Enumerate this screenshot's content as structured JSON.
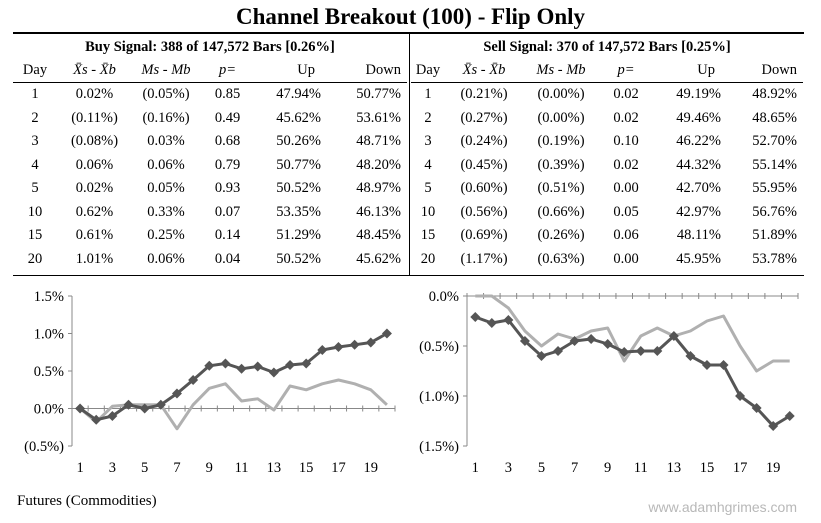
{
  "title": "Channel Breakout (100) - Flip Only",
  "buy": {
    "heading": "Buy Signal: 388 of 147,572 Bars [0.26%]",
    "columns": [
      "Day",
      "X̄s - X̄b",
      "Ms - Mb",
      "p=",
      "Up",
      "Down"
    ],
    "rows": [
      [
        "1",
        "0.02%",
        "(0.05%)",
        "0.85",
        "47.94%",
        "50.77%"
      ],
      [
        "2",
        "(0.11%)",
        "(0.16%)",
        "0.49",
        "45.62%",
        "53.61%"
      ],
      [
        "3",
        "(0.08%)",
        "0.03%",
        "0.68",
        "50.26%",
        "48.71%"
      ],
      [
        "4",
        "0.06%",
        "0.06%",
        "0.79",
        "50.77%",
        "48.20%"
      ],
      [
        "5",
        "0.02%",
        "0.05%",
        "0.93",
        "50.52%",
        "48.97%"
      ],
      [
        "10",
        "0.62%",
        "0.33%",
        "0.07",
        "53.35%",
        "46.13%"
      ],
      [
        "15",
        "0.61%",
        "0.25%",
        "0.14",
        "51.29%",
        "48.45%"
      ],
      [
        "20",
        "1.01%",
        "0.06%",
        "0.04",
        "50.52%",
        "45.62%"
      ]
    ]
  },
  "sell": {
    "heading": "Sell Signal: 370 of 147,572 Bars [0.25%]",
    "columns": [
      "Day",
      "X̄s - X̄b",
      "Ms - Mb",
      "p=",
      "Up",
      "Down"
    ],
    "rows": [
      [
        "1",
        "(0.21%)",
        "(0.00%)",
        "0.02",
        "49.19%",
        "48.92%"
      ],
      [
        "2",
        "(0.27%)",
        "(0.00%)",
        "0.02",
        "49.46%",
        "48.65%"
      ],
      [
        "3",
        "(0.24%)",
        "(0.19%)",
        "0.10",
        "46.22%",
        "52.70%"
      ],
      [
        "4",
        "(0.45%)",
        "(0.39%)",
        "0.02",
        "44.32%",
        "55.14%"
      ],
      [
        "5",
        "(0.60%)",
        "(0.51%)",
        "0.00",
        "42.70%",
        "55.95%"
      ],
      [
        "10",
        "(0.56%)",
        "(0.66%)",
        "0.05",
        "42.97%",
        "56.76%"
      ],
      [
        "15",
        "(0.69%)",
        "(0.26%)",
        "0.06",
        "48.11%",
        "51.89%"
      ],
      [
        "20",
        "(1.17%)",
        "(0.63%)",
        "0.00",
        "45.95%",
        "53.78%"
      ]
    ]
  },
  "chart_data": [
    {
      "type": "line",
      "x": [
        1,
        2,
        3,
        4,
        5,
        6,
        7,
        8,
        9,
        10,
        11,
        12,
        13,
        14,
        15,
        16,
        17,
        18,
        19,
        20
      ],
      "xticks": [
        "1",
        "3",
        "5",
        "7",
        "9",
        "11",
        "13",
        "15",
        "17",
        "19"
      ],
      "yticks": [
        "1.5%",
        "1.0%",
        "0.5%",
        "0.0%",
        "(0.5%)"
      ],
      "ylim": [
        -0.5,
        1.5
      ],
      "series": [
        {
          "name": "",
          "color": "#555555",
          "marker": "diamond",
          "values": [
            0.0,
            -0.15,
            -0.1,
            0.05,
            0.0,
            0.05,
            0.2,
            0.38,
            0.57,
            0.6,
            0.53,
            0.56,
            0.48,
            0.58,
            0.6,
            0.78,
            0.82,
            0.85,
            0.88,
            1.0
          ]
        },
        {
          "name": "",
          "color": "#b0b0b0",
          "marker": "none",
          "values": [
            0.0,
            -0.18,
            0.03,
            0.05,
            0.05,
            0.05,
            -0.27,
            0.05,
            0.27,
            0.33,
            0.1,
            0.13,
            -0.02,
            0.3,
            0.25,
            0.33,
            0.38,
            0.33,
            0.25,
            0.05
          ]
        }
      ]
    },
    {
      "type": "line",
      "x": [
        1,
        2,
        3,
        4,
        5,
        6,
        7,
        8,
        9,
        10,
        11,
        12,
        13,
        14,
        15,
        16,
        17,
        18,
        19,
        20
      ],
      "xticks": [
        "1",
        "3",
        "5",
        "7",
        "9",
        "11",
        "13",
        "15",
        "17",
        "19"
      ],
      "yticks": [
        "0.0%",
        "(0.5%)",
        "(1.0%)",
        "(1.5%)"
      ],
      "ylim": [
        -1.5,
        0.0
      ],
      "series": [
        {
          "name": "",
          "color": "#555555",
          "marker": "diamond",
          "values": [
            -0.21,
            -0.27,
            -0.24,
            -0.45,
            -0.6,
            -0.55,
            -0.45,
            -0.43,
            -0.48,
            -0.56,
            -0.55,
            -0.55,
            -0.4,
            -0.6,
            -0.69,
            -0.69,
            -1.0,
            -1.12,
            -1.3,
            -1.2
          ]
        },
        {
          "name": "",
          "color": "#b0b0b0",
          "marker": "none",
          "values": [
            0.0,
            0.0,
            -0.12,
            -0.35,
            -0.5,
            -0.38,
            -0.43,
            -0.35,
            -0.32,
            -0.65,
            -0.4,
            -0.32,
            -0.4,
            -0.35,
            -0.25,
            -0.2,
            -0.5,
            -0.75,
            -0.65,
            -0.65
          ]
        }
      ]
    }
  ],
  "footer": "Futures (Commodities)",
  "watermark": "www.adamhgrimes.com"
}
